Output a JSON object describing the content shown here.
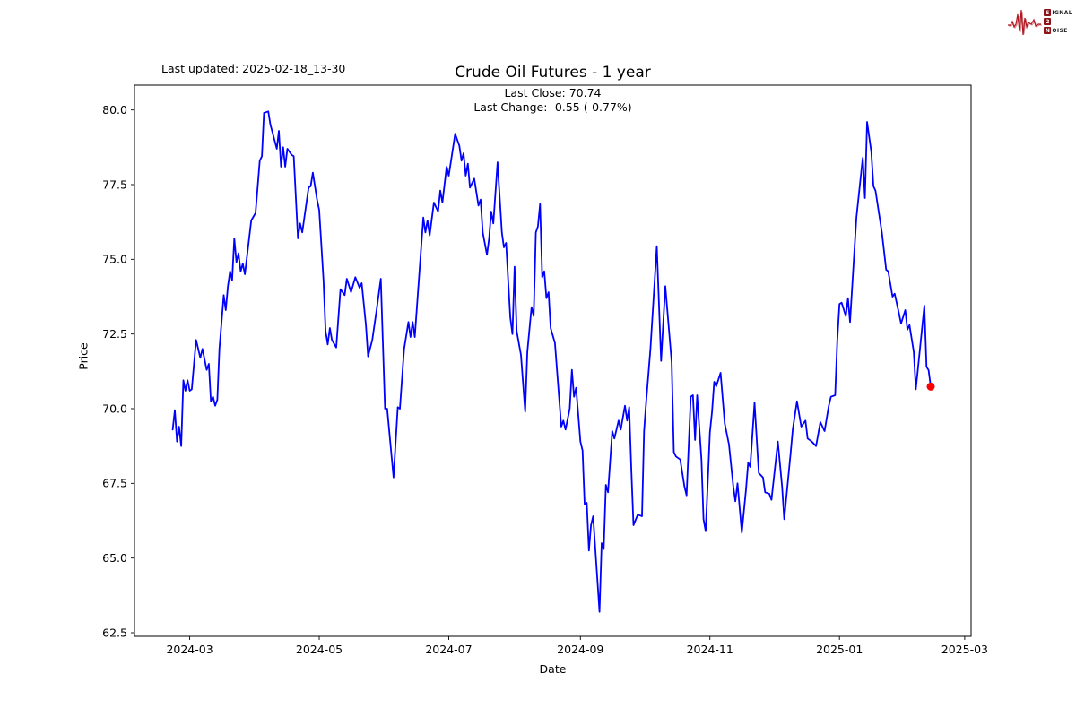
{
  "header": {
    "last_updated": "Last updated: 2025-02-18_13-30",
    "title": "Crude Oil Futures - 1 year",
    "subtitle_line1": "Last Close: 70.74",
    "subtitle_line2": "Last Change: -0.55 (-0.77%)"
  },
  "logo": {
    "word1_initial": "S",
    "word1_rest": "IGNAL",
    "middle": "2",
    "word2_initial": "N",
    "word2_rest": "OISE",
    "wave_color": "#b01722",
    "wave_color_light": "#d98a8e"
  },
  "chart_data": {
    "type": "line",
    "title": "Crude Oil Futures - 1 year",
    "xlabel": "Date",
    "ylabel": "Price",
    "last_close": 70.74,
    "last_change": -0.55,
    "last_change_pct": -0.77,
    "line_color": "#0000ff",
    "marker": {
      "day": 349,
      "price": 70.74,
      "color": "#ff0000"
    },
    "grid": false,
    "legend": null,
    "x_domain_days": [
      -26,
      368
    ],
    "x_ticks": [
      {
        "day": 0,
        "label": "2024-03"
      },
      {
        "day": 61,
        "label": "2024-05"
      },
      {
        "day": 122,
        "label": "2024-07"
      },
      {
        "day": 184,
        "label": "2024-09"
      },
      {
        "day": 245,
        "label": "2024-11"
      },
      {
        "day": 306,
        "label": "2025-01"
      },
      {
        "day": 365,
        "label": "2025-03"
      }
    ],
    "x_tick_day_zero_date": "2024-03-01",
    "ylim": [
      62.38,
      80.83
    ],
    "y_ticks": [
      62.5,
      65.0,
      67.5,
      70.0,
      72.5,
      75.0,
      77.5,
      80.0
    ],
    "series": [
      [
        -8,
        69.3
      ],
      [
        -7,
        69.95
      ],
      [
        -6,
        68.9
      ],
      [
        -5,
        69.4
      ],
      [
        -4,
        68.75
      ],
      [
        -3,
        70.95
      ],
      [
        -2,
        70.6
      ],
      [
        -1,
        70.95
      ],
      [
        0,
        70.6
      ],
      [
        1,
        70.65
      ],
      [
        3,
        72.3
      ],
      [
        5,
        71.7
      ],
      [
        6,
        72.0
      ],
      [
        8,
        71.3
      ],
      [
        9,
        71.5
      ],
      [
        10,
        70.25
      ],
      [
        11,
        70.4
      ],
      [
        12,
        70.1
      ],
      [
        13,
        70.3
      ],
      [
        14,
        72.0
      ],
      [
        16,
        73.8
      ],
      [
        17,
        73.3
      ],
      [
        18,
        74.1
      ],
      [
        19,
        74.6
      ],
      [
        20,
        74.3
      ],
      [
        21,
        75.7
      ],
      [
        22,
        74.9
      ],
      [
        23,
        75.2
      ],
      [
        24,
        74.6
      ],
      [
        25,
        74.85
      ],
      [
        26,
        74.5
      ],
      [
        27,
        75.1
      ],
      [
        29,
        76.3
      ],
      [
        31,
        76.55
      ],
      [
        33,
        78.3
      ],
      [
        34,
        78.45
      ],
      [
        35,
        79.9
      ],
      [
        37,
        79.95
      ],
      [
        38,
        79.5
      ],
      [
        39,
        79.25
      ],
      [
        41,
        78.7
      ],
      [
        42,
        79.3
      ],
      [
        43,
        78.1
      ],
      [
        44,
        78.75
      ],
      [
        45,
        78.1
      ],
      [
        46,
        78.7
      ],
      [
        48,
        78.5
      ],
      [
        49,
        78.45
      ],
      [
        51,
        75.7
      ],
      [
        52,
        76.2
      ],
      [
        53,
        75.9
      ],
      [
        56,
        77.4
      ],
      [
        57,
        77.45
      ],
      [
        58,
        77.9
      ],
      [
        60,
        77.0
      ],
      [
        61,
        76.65
      ],
      [
        63,
        74.3
      ],
      [
        64,
        72.6
      ],
      [
        65,
        72.15
      ],
      [
        66,
        72.7
      ],
      [
        67,
        72.3
      ],
      [
        69,
        72.05
      ],
      [
        71,
        74.0
      ],
      [
        73,
        73.8
      ],
      [
        74,
        74.35
      ],
      [
        76,
        73.9
      ],
      [
        78,
        74.4
      ],
      [
        80,
        74.05
      ],
      [
        81,
        74.2
      ],
      [
        83,
        72.8
      ],
      [
        84,
        71.75
      ],
      [
        86,
        72.3
      ],
      [
        88,
        73.3
      ],
      [
        90,
        74.35
      ],
      [
        92,
        70.0
      ],
      [
        93,
        70.0
      ],
      [
        96,
        67.7
      ],
      [
        98,
        70.05
      ],
      [
        99,
        70.0
      ],
      [
        101,
        72.0
      ],
      [
        103,
        72.9
      ],
      [
        104,
        72.4
      ],
      [
        105,
        72.9
      ],
      [
        106,
        72.4
      ],
      [
        110,
        76.4
      ],
      [
        111,
        75.9
      ],
      [
        112,
        76.3
      ],
      [
        113,
        75.8
      ],
      [
        115,
        76.9
      ],
      [
        117,
        76.6
      ],
      [
        118,
        77.3
      ],
      [
        119,
        76.9
      ],
      [
        121,
        78.1
      ],
      [
        122,
        77.8
      ],
      [
        125,
        79.2
      ],
      [
        127,
        78.8
      ],
      [
        128,
        78.3
      ],
      [
        129,
        78.55
      ],
      [
        130,
        77.8
      ],
      [
        131,
        78.2
      ],
      [
        132,
        77.4
      ],
      [
        134,
        77.7
      ],
      [
        136,
        76.8
      ],
      [
        137,
        77.0
      ],
      [
        138,
        75.9
      ],
      [
        140,
        75.15
      ],
      [
        141,
        75.7
      ],
      [
        142,
        76.6
      ],
      [
        143,
        76.2
      ],
      [
        145,
        78.25
      ],
      [
        147,
        75.9
      ],
      [
        148,
        75.4
      ],
      [
        149,
        75.55
      ],
      [
        151,
        73.05
      ],
      [
        152,
        72.5
      ],
      [
        153,
        74.75
      ],
      [
        154,
        72.6
      ],
      [
        156,
        71.8
      ],
      [
        158,
        69.9
      ],
      [
        159,
        71.9
      ],
      [
        161,
        73.4
      ],
      [
        162,
        73.1
      ],
      [
        163,
        75.9
      ],
      [
        164,
        76.1
      ],
      [
        165,
        76.85
      ],
      [
        166,
        74.4
      ],
      [
        167,
        74.6
      ],
      [
        168,
        73.7
      ],
      [
        169,
        73.9
      ],
      [
        170,
        72.7
      ],
      [
        172,
        72.2
      ],
      [
        175,
        69.4
      ],
      [
        176,
        69.6
      ],
      [
        177,
        69.3
      ],
      [
        179,
        70.0
      ],
      [
        180,
        71.3
      ],
      [
        181,
        70.4
      ],
      [
        182,
        70.7
      ],
      [
        184,
        68.9
      ],
      [
        185,
        68.6
      ],
      [
        186,
        66.8
      ],
      [
        187,
        66.85
      ],
      [
        188,
        65.25
      ],
      [
        189,
        66.1
      ],
      [
        190,
        66.4
      ],
      [
        193,
        63.2
      ],
      [
        194,
        65.5
      ],
      [
        195,
        65.3
      ],
      [
        196,
        67.45
      ],
      [
        197,
        67.2
      ],
      [
        199,
        69.25
      ],
      [
        200,
        69.0
      ],
      [
        202,
        69.6
      ],
      [
        203,
        69.3
      ],
      [
        205,
        70.1
      ],
      [
        206,
        69.6
      ],
      [
        207,
        70.05
      ],
      [
        208,
        67.95
      ],
      [
        209,
        66.1
      ],
      [
        211,
        66.45
      ],
      [
        213,
        66.4
      ],
      [
        214,
        69.25
      ],
      [
        215,
        70.25
      ],
      [
        217,
        72.0
      ],
      [
        220,
        75.44
      ],
      [
        222,
        71.6
      ],
      [
        224,
        74.1
      ],
      [
        227,
        71.55
      ],
      [
        228,
        68.55
      ],
      [
        229,
        68.4
      ],
      [
        231,
        68.3
      ],
      [
        233,
        67.4
      ],
      [
        234,
        67.1
      ],
      [
        236,
        70.4
      ],
      [
        237,
        70.45
      ],
      [
        238,
        68.95
      ],
      [
        239,
        70.45
      ],
      [
        241,
        68.3
      ],
      [
        242,
        66.3
      ],
      [
        243,
        65.9
      ],
      [
        245,
        69.2
      ],
      [
        246,
        69.9
      ],
      [
        247,
        70.9
      ],
      [
        248,
        70.75
      ],
      [
        250,
        71.2
      ],
      [
        252,
        69.5
      ],
      [
        254,
        68.8
      ],
      [
        256,
        67.4
      ],
      [
        257,
        66.9
      ],
      [
        258,
        67.5
      ],
      [
        260,
        65.85
      ],
      [
        262,
        67.3
      ],
      [
        263,
        68.2
      ],
      [
        264,
        68.05
      ],
      [
        266,
        70.2
      ],
      [
        268,
        67.85
      ],
      [
        270,
        67.7
      ],
      [
        271,
        67.2
      ],
      [
        273,
        67.15
      ],
      [
        274,
        66.95
      ],
      [
        277,
        68.9
      ],
      [
        279,
        67.4
      ],
      [
        280,
        66.3
      ],
      [
        283,
        68.5
      ],
      [
        284,
        69.3
      ],
      [
        286,
        70.25
      ],
      [
        288,
        69.4
      ],
      [
        290,
        69.6
      ],
      [
        291,
        69.0
      ],
      [
        293,
        68.9
      ],
      [
        295,
        68.75
      ],
      [
        297,
        69.55
      ],
      [
        299,
        69.25
      ],
      [
        301,
        70.1
      ],
      [
        302,
        70.4
      ],
      [
        304,
        70.45
      ],
      [
        305,
        72.3
      ],
      [
        306,
        73.5
      ],
      [
        307,
        73.55
      ],
      [
        309,
        73.1
      ],
      [
        310,
        73.7
      ],
      [
        311,
        72.9
      ],
      [
        314,
        76.4
      ],
      [
        317,
        78.4
      ],
      [
        318,
        77.05
      ],
      [
        319,
        79.6
      ],
      [
        321,
        78.6
      ],
      [
        322,
        77.45
      ],
      [
        323,
        77.3
      ],
      [
        326,
        75.9
      ],
      [
        328,
        74.65
      ],
      [
        329,
        74.6
      ],
      [
        331,
        73.75
      ],
      [
        332,
        73.85
      ],
      [
        334,
        73.2
      ],
      [
        335,
        72.85
      ],
      [
        337,
        73.3
      ],
      [
        338,
        72.65
      ],
      [
        339,
        72.8
      ],
      [
        341,
        71.9
      ],
      [
        342,
        70.65
      ],
      [
        346,
        73.45
      ],
      [
        347,
        71.4
      ],
      [
        348,
        71.29
      ],
      [
        349,
        70.74
      ]
    ]
  }
}
